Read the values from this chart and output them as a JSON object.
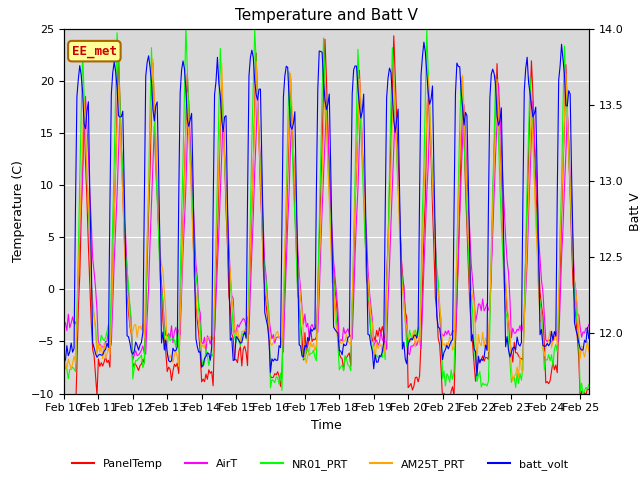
{
  "title": "Temperature and Batt V",
  "xlabel": "Time",
  "ylabel_left": "Temperature (C)",
  "ylabel_right": "Batt V",
  "annotation": "EE_met",
  "left_ylim": [
    -10,
    25
  ],
  "right_ylim": [
    11.6,
    14.0
  ],
  "colors": {
    "PanelTemp": "#ff0000",
    "AirT": "#ff00ff",
    "NR01_PRT": "#00ff00",
    "AM25T_PRT": "#ffa500",
    "batt_volt": "#0000ff"
  },
  "background_color": "#ffffff",
  "plot_bg_color": "#d8d8d8",
  "grid_color": "#ffffff",
  "title_fontsize": 11,
  "axis_fontsize": 9,
  "tick_fontsize": 8,
  "annotation_fontsize": 9
}
